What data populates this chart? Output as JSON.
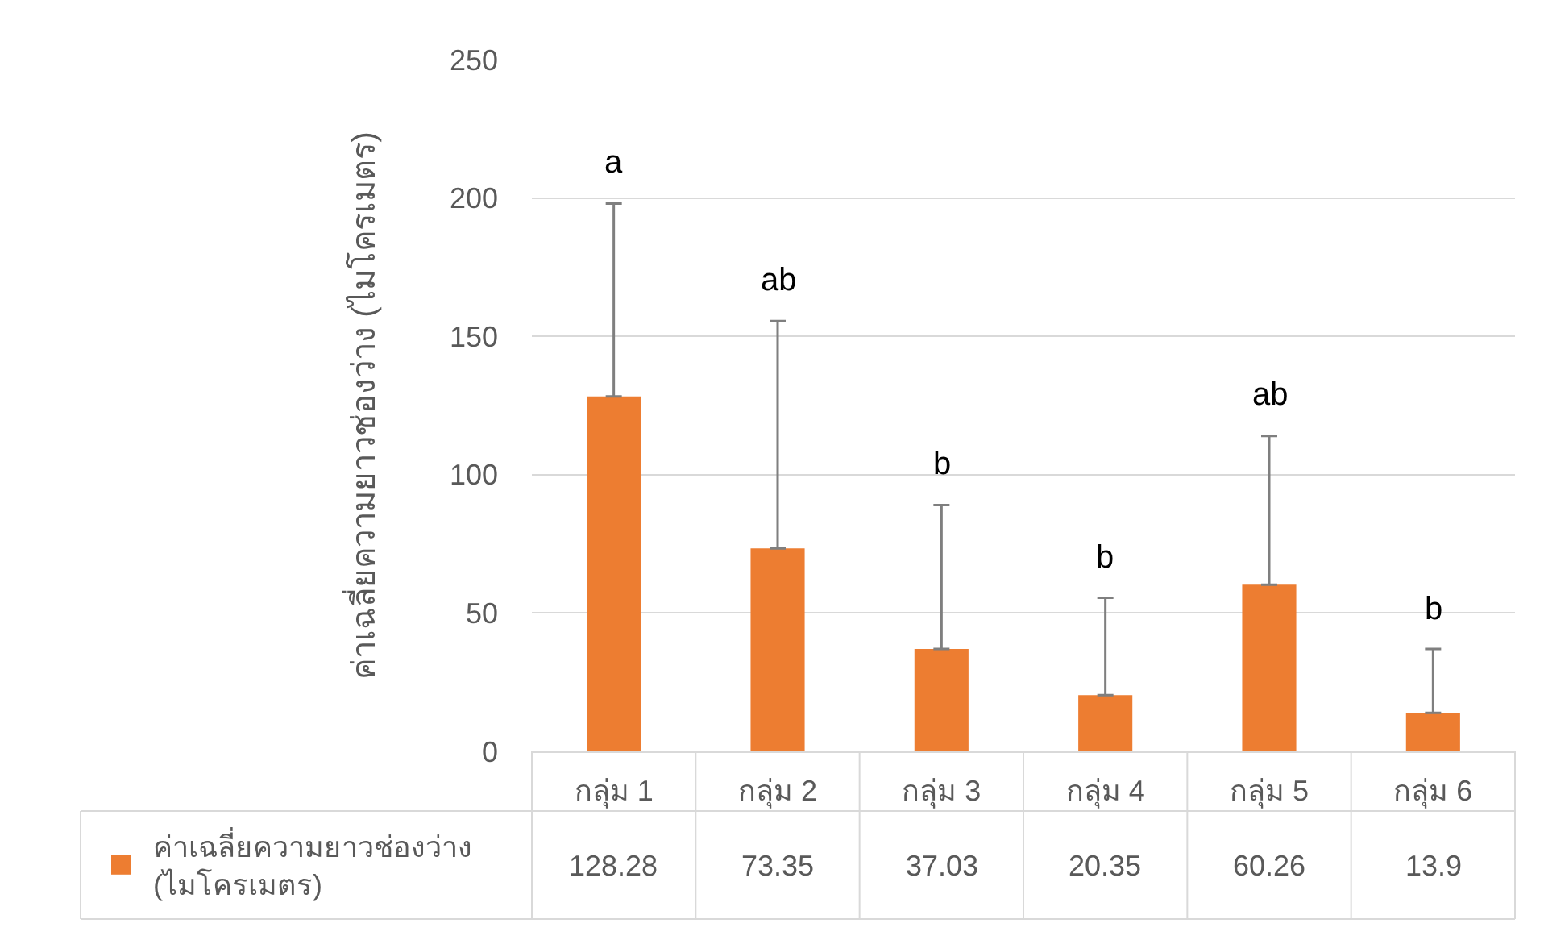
{
  "chart_data": {
    "type": "bar",
    "ylabel": "ค่าเฉลี่ยความยาวช่องว่าง (ไมโครเมตร)",
    "categories": [
      "กลุ่ม 1",
      "กลุ่ม 2",
      "กลุ่ม 3",
      "กลุ่ม 4",
      "กลุ่ม 5",
      "กลุ่ม 6"
    ],
    "series": [
      {
        "name": "ค่าเฉลี่ยความยาวช่องว่าง (ไมโครเมตร)",
        "color": "#ed7d31",
        "values": [
          128.28,
          73.35,
          37.03,
          20.35,
          60.26,
          13.9
        ],
        "errors": [
          [
            128.28,
            198
          ],
          [
            73.35,
            155.5
          ],
          [
            37.03,
            89
          ],
          [
            20.35,
            55.5
          ],
          [
            60.26,
            114
          ],
          [
            13.9,
            37
          ]
        ]
      }
    ],
    "ylim": [
      0,
      250
    ],
    "yticks": [
      0,
      50,
      100,
      150,
      200,
      250
    ],
    "grid": "y",
    "data_labels": true,
    "legend": "bottom left",
    "annotations": [
      {
        "text": "a",
        "x": "กลุ่ม 1",
        "y": 198
      },
      {
        "text": "ab",
        "x": "กลุ่ม 2",
        "y": 155.5
      },
      {
        "text": "b",
        "x": "กลุ่ม 3",
        "y": 89
      },
      {
        "text": "b",
        "x": "กลุ่ม 4",
        "y": 55.5
      },
      {
        "text": "ab",
        "x": "กลุ่ม 5",
        "y": 114
      },
      {
        "text": "b",
        "x": "กลุ่ม 6",
        "y": 37
      }
    ]
  }
}
